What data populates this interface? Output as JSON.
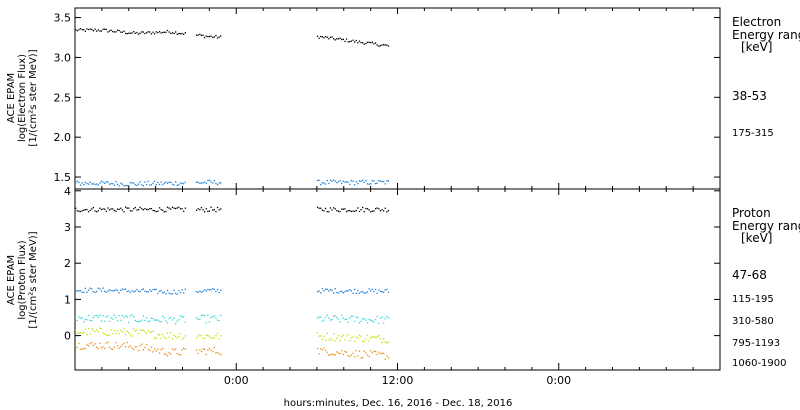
{
  "chart_data": [
    {
      "type": "scatter",
      "title": "",
      "ylabel_lines": [
        "ACE EPAM",
        "log(Electron Flux)",
        "[1/(cm²s ster MeV)]"
      ],
      "ylim": [
        1.35,
        3.62
      ],
      "yticks": [
        1.5,
        2.0,
        2.5,
        3.0,
        3.5
      ],
      "yticklabels": [
        "1.5",
        "2.0",
        "2.5",
        "3.0",
        "3.5"
      ],
      "legend_title_lines": [
        "Electron",
        "Energy range",
        "[keV]"
      ],
      "series": [
        {
          "name": "38-53",
          "color": "#000000",
          "values": [
            3.35,
            3.31,
            3.33,
            3.27,
            3.15
          ]
        },
        {
          "name": "175-315",
          "color": "#1a7fd4",
          "values": [
            1.43,
            1.42,
            1.43,
            1.44,
            1.44
          ]
        }
      ]
    },
    {
      "type": "scatter",
      "title": "",
      "ylabel_lines": [
        "ACE EPAM",
        "log(Proton Flux)",
        "[1/(cm²s ster MeV)]"
      ],
      "ylim": [
        -0.95,
        4.05
      ],
      "yticks": [
        0,
        1,
        2,
        3,
        4
      ],
      "yticklabels": [
        "0",
        "1",
        "2",
        "3",
        "4"
      ],
      "legend_title_lines": [
        "Proton",
        "Energy range",
        "[keV]"
      ],
      "series": [
        {
          "name": "47-68",
          "color": "#000000",
          "values": [
            3.5,
            3.5,
            3.5,
            3.5,
            3.5
          ]
        },
        {
          "name": "115-195",
          "color": "#1a7fd4",
          "values": [
            1.27,
            1.25,
            1.22,
            1.26,
            1.24
          ]
        },
        {
          "name": "310-580",
          "color": "#33d6d6",
          "values": [
            0.5,
            0.48,
            0.45,
            0.48,
            0.45
          ]
        },
        {
          "name": "795-1193",
          "color": "#c8e000",
          "values": [
            0.12,
            0.1,
            0.02,
            0.0,
            -0.08
          ]
        },
        {
          "name": "1060-1900",
          "color": "#e8901a",
          "values": [
            -0.25,
            -0.28,
            -0.45,
            -0.4,
            -0.55
          ]
        }
      ]
    }
  ],
  "xaxis": {
    "xlabel": "hours:minutes, Dec. 16, 2016 - Dec. 18, 2016",
    "range_hours": [
      0,
      48
    ],
    "ticks": [
      {
        "hours": 12,
        "label": "0:00"
      },
      {
        "hours": 24,
        "label": "12:00"
      },
      {
        "hours": 36,
        "label": "0:00"
      }
    ],
    "data_segments_hours": [
      [
        0,
        8.2
      ],
      [
        9.0,
        10.8
      ],
      [
        18.0,
        23.4
      ]
    ]
  }
}
